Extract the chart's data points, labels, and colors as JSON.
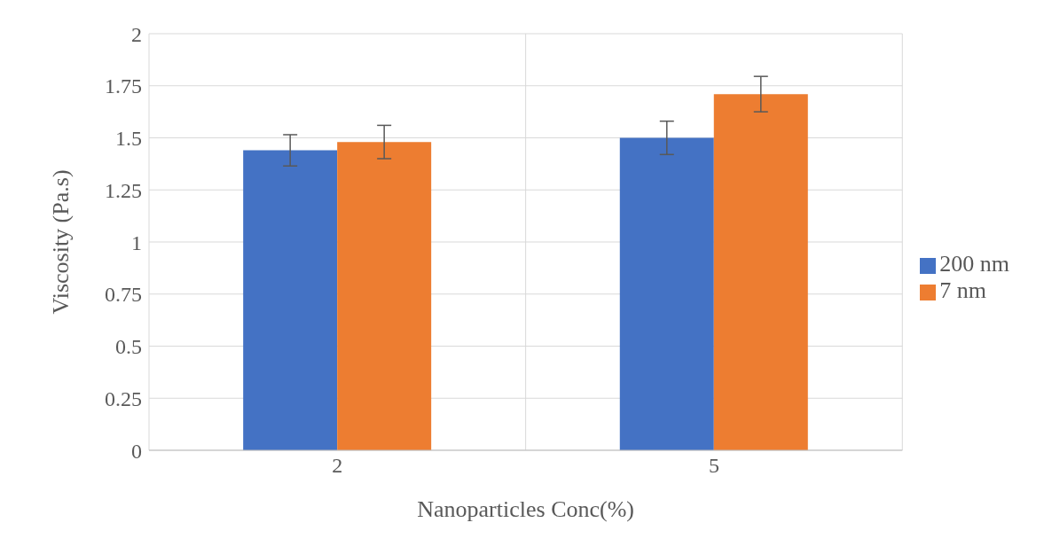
{
  "chart_data": {
    "type": "bar",
    "xlabel": "Nanoparticles Conc(%)",
    "ylabel": "Viscosity (Pa.s)",
    "categories": [
      "2",
      "5"
    ],
    "series": [
      {
        "name": "200 nm",
        "color": "#4472c4",
        "values": [
          1.44,
          1.5
        ],
        "errors": [
          0.075,
          0.08
        ]
      },
      {
        "name": "7 nm",
        "color": "#ed7d31",
        "values": [
          1.48,
          1.71
        ],
        "errors": [
          0.08,
          0.085
        ]
      }
    ],
    "ylim": [
      0,
      2
    ],
    "yticks": [
      0,
      0.25,
      0.5,
      0.75,
      1,
      1.25,
      1.5,
      1.75,
      2
    ],
    "grid": true,
    "legend": "right"
  }
}
